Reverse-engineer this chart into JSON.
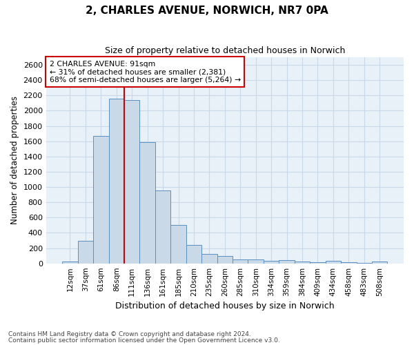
{
  "title_line1": "2, CHARLES AVENUE, NORWICH, NR7 0PA",
  "title_line2": "Size of property relative to detached houses in Norwich",
  "xlabel": "Distribution of detached houses by size in Norwich",
  "ylabel": "Number of detached properties",
  "bar_labels": [
    "12sqm",
    "37sqm",
    "61sqm",
    "86sqm",
    "111sqm",
    "136sqm",
    "161sqm",
    "185sqm",
    "210sqm",
    "235sqm",
    "260sqm",
    "285sqm",
    "310sqm",
    "334sqm",
    "359sqm",
    "384sqm",
    "409sqm",
    "434sqm",
    "458sqm",
    "483sqm",
    "508sqm"
  ],
  "bar_values": [
    25,
    300,
    1670,
    2160,
    2140,
    1590,
    960,
    500,
    245,
    120,
    100,
    50,
    50,
    30,
    40,
    20,
    15,
    30,
    15,
    10,
    25
  ],
  "bar_color": "#c9d9e8",
  "bar_edge_color": "#5a8fc0",
  "grid_color": "#c8d8e8",
  "bg_color": "#e8f0f8",
  "vline_color": "#cc0000",
  "vline_position": 3.5,
  "annotation_text": "2 CHARLES AVENUE: 91sqm\n← 31% of detached houses are smaller (2,381)\n68% of semi-detached houses are larger (5,264) →",
  "annotation_box_edgecolor": "#cc0000",
  "ylim": [
    0,
    2700
  ],
  "yticks": [
    0,
    200,
    400,
    600,
    800,
    1000,
    1200,
    1400,
    1600,
    1800,
    2000,
    2200,
    2400,
    2600
  ],
  "footnote1": "Contains HM Land Registry data © Crown copyright and database right 2024.",
  "footnote2": "Contains public sector information licensed under the Open Government Licence v3.0."
}
